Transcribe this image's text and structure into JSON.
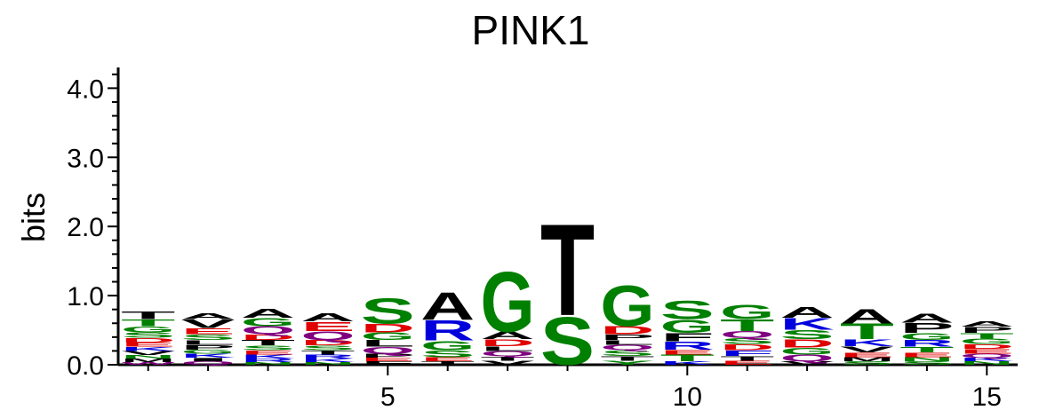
{
  "chart_data": {
    "type": "sequence-logo",
    "title": "PINK1",
    "xlabel": "",
    "ylabel": "bits",
    "ylim": [
      0,
      4.3
    ],
    "y_ticks": [
      {
        "value": 0.0,
        "label": "0.0"
      },
      {
        "value": 1.0,
        "label": "1.0"
      },
      {
        "value": 2.0,
        "label": "2.0"
      },
      {
        "value": 3.0,
        "label": "3.0"
      },
      {
        "value": 4.0,
        "label": "4.0"
      }
    ],
    "x_ticks": [
      {
        "value": 5,
        "label": "5"
      },
      {
        "value": 10,
        "label": "10"
      },
      {
        "value": 15,
        "label": "15"
      }
    ],
    "positions": [
      1,
      2,
      3,
      4,
      5,
      6,
      7,
      8,
      9,
      10,
      11,
      12,
      13,
      14,
      15
    ],
    "color_scheme": {
      "green": "#008000",
      "black": "#000000",
      "red": "#e00000",
      "blue": "#0000dd",
      "purple": "#800080"
    },
    "stacks": [
      {
        "position": 1,
        "letters": [
          {
            "aa": "W",
            "bits": 0.04,
            "color": "#800080"
          },
          {
            "aa": "M",
            "bits": 0.05,
            "color": "#000000"
          },
          {
            "aa": "N",
            "bits": 0.05,
            "color": "#008000"
          },
          {
            "aa": "V",
            "bits": 0.06,
            "color": "#000000"
          },
          {
            "aa": "K",
            "bits": 0.06,
            "color": "#0000dd"
          },
          {
            "aa": "E",
            "bits": 0.06,
            "color": "#e00000"
          },
          {
            "aa": "D",
            "bits": 0.07,
            "color": "#e00000"
          },
          {
            "aa": "S",
            "bits": 0.08,
            "color": "#008000"
          },
          {
            "aa": "G",
            "bits": 0.09,
            "color": "#008000"
          },
          {
            "aa": "T",
            "bits": 0.1,
            "color": "#008000"
          },
          {
            "aa": "T",
            "bits": 0.11,
            "color": "#000000"
          }
        ]
      },
      {
        "position": 2,
        "letters": [
          {
            "aa": "Q",
            "bits": 0.05,
            "color": "#800080"
          },
          {
            "aa": "I",
            "bits": 0.05,
            "color": "#000000"
          },
          {
            "aa": "K",
            "bits": 0.06,
            "color": "#0000dd"
          },
          {
            "aa": "G",
            "bits": 0.06,
            "color": "#008000"
          },
          {
            "aa": "P",
            "bits": 0.07,
            "color": "#000000"
          },
          {
            "aa": "L",
            "bits": 0.07,
            "color": "#000000"
          },
          {
            "aa": "S",
            "bits": 0.08,
            "color": "#008000"
          },
          {
            "aa": "E",
            "bits": 0.09,
            "color": "#e00000"
          },
          {
            "aa": "V",
            "bits": 0.13,
            "color": "#000000"
          },
          {
            "aa": "A",
            "bits": 0.09,
            "color": "#000000"
          }
        ]
      },
      {
        "position": 3,
        "letters": [
          {
            "aa": "N",
            "bits": 0.04,
            "color": "#008000"
          },
          {
            "aa": "R",
            "bits": 0.05,
            "color": "#0000dd"
          },
          {
            "aa": "K",
            "bits": 0.06,
            "color": "#0000dd"
          },
          {
            "aa": "E",
            "bits": 0.06,
            "color": "#e00000"
          },
          {
            "aa": "S",
            "bits": 0.07,
            "color": "#008000"
          },
          {
            "aa": "T",
            "bits": 0.08,
            "color": "#000000"
          },
          {
            "aa": "D",
            "bits": 0.08,
            "color": "#e00000"
          },
          {
            "aa": "Q",
            "bits": 0.12,
            "color": "#800080"
          },
          {
            "aa": "G",
            "bits": 0.12,
            "color": "#008000"
          },
          {
            "aa": "A",
            "bits": 0.14,
            "color": "#000000"
          }
        ]
      },
      {
        "position": 4,
        "letters": [
          {
            "aa": "N",
            "bits": 0.04,
            "color": "#008000"
          },
          {
            "aa": "K",
            "bits": 0.05,
            "color": "#0000dd"
          },
          {
            "aa": "R",
            "bits": 0.06,
            "color": "#0000dd"
          },
          {
            "aa": "T",
            "bits": 0.06,
            "color": "#000000"
          },
          {
            "aa": "S",
            "bits": 0.07,
            "color": "#008000"
          },
          {
            "aa": "D",
            "bits": 0.08,
            "color": "#e00000"
          },
          {
            "aa": "Q",
            "bits": 0.13,
            "color": "#800080"
          },
          {
            "aa": "E",
            "bits": 0.14,
            "color": "#e00000"
          },
          {
            "aa": "A",
            "bits": 0.12,
            "color": "#000000"
          }
        ]
      },
      {
        "position": 5,
        "letters": [
          {
            "aa": "F",
            "bits": 0.05,
            "color": "#000000"
          },
          {
            "aa": "E",
            "bits": 0.05,
            "color": "#e00000"
          },
          {
            "aa": "P",
            "bits": 0.06,
            "color": "#000000"
          },
          {
            "aa": "Q",
            "bits": 0.1,
            "color": "#800080"
          },
          {
            "aa": "L",
            "bits": 0.1,
            "color": "#000000"
          },
          {
            "aa": "G",
            "bits": 0.11,
            "color": "#008000"
          },
          {
            "aa": "D",
            "bits": 0.13,
            "color": "#e00000"
          },
          {
            "aa": "S",
            "bits": 0.38,
            "color": "#008000"
          }
        ]
      },
      {
        "position": 6,
        "letters": [
          {
            "aa": "T",
            "bits": 0.05,
            "color": "#000000"
          },
          {
            "aa": "E",
            "bits": 0.06,
            "color": "#e00000"
          },
          {
            "aa": "S",
            "bits": 0.1,
            "color": "#008000"
          },
          {
            "aa": "G",
            "bits": 0.14,
            "color": "#008000"
          },
          {
            "aa": "R",
            "bits": 0.3,
            "color": "#0000dd"
          },
          {
            "aa": "A",
            "bits": 0.42,
            "color": "#000000"
          }
        ]
      },
      {
        "position": 7,
        "letters": [
          {
            "aa": "V",
            "bits": 0.06,
            "color": "#000000"
          },
          {
            "aa": "T",
            "bits": 0.06,
            "color": "#000000"
          },
          {
            "aa": "Q",
            "bits": 0.08,
            "color": "#800080"
          },
          {
            "aa": "L",
            "bits": 0.07,
            "color": "#000000"
          },
          {
            "aa": "D",
            "bits": 0.1,
            "color": "#e00000"
          },
          {
            "aa": "A",
            "bits": 0.11,
            "color": "#000000"
          },
          {
            "aa": "G",
            "bits": 0.9,
            "color": "#008000"
          }
        ]
      },
      {
        "position": 8,
        "letters": [
          {
            "aa": "S",
            "bits": 0.72,
            "color": "#008000"
          },
          {
            "aa": "T",
            "bits": 1.38,
            "color": "#000000"
          }
        ]
      },
      {
        "position": 9,
        "letters": [
          {
            "aa": "Y",
            "bits": 0.06,
            "color": "#008000"
          },
          {
            "aa": "T",
            "bits": 0.07,
            "color": "#000000"
          },
          {
            "aa": "S",
            "bits": 0.08,
            "color": "#008000"
          },
          {
            "aa": "Q",
            "bits": 0.08,
            "color": "#800080"
          },
          {
            "aa": "L",
            "bits": 0.07,
            "color": "#000000"
          },
          {
            "aa": "P",
            "bits": 0.08,
            "color": "#000000"
          },
          {
            "aa": "D",
            "bits": 0.12,
            "color": "#e00000"
          },
          {
            "aa": "G",
            "bits": 0.62,
            "color": "#008000"
          }
        ]
      },
      {
        "position": 10,
        "letters": [
          {
            "aa": "K",
            "bits": 0.05,
            "color": "#0000dd"
          },
          {
            "aa": "T",
            "bits": 0.1,
            "color": "#008000"
          },
          {
            "aa": "E",
            "bits": 0.07,
            "color": "#e00000"
          },
          {
            "aa": "R",
            "bits": 0.12,
            "color": "#0000dd"
          },
          {
            "aa": "F",
            "bits": 0.12,
            "color": "#000000"
          },
          {
            "aa": "G",
            "bits": 0.2,
            "color": "#008000"
          },
          {
            "aa": "S",
            "bits": 0.28,
            "color": "#008000"
          }
        ]
      },
      {
        "position": 11,
        "letters": [
          {
            "aa": "E",
            "bits": 0.06,
            "color": "#e00000"
          },
          {
            "aa": "T",
            "bits": 0.07,
            "color": "#000000"
          },
          {
            "aa": "F",
            "bits": 0.08,
            "color": "#0000dd"
          },
          {
            "aa": "D",
            "bits": 0.09,
            "color": "#e00000"
          },
          {
            "aa": "S",
            "bits": 0.09,
            "color": "#008000"
          },
          {
            "aa": "Q",
            "bits": 0.1,
            "color": "#800080"
          },
          {
            "aa": "T",
            "bits": 0.17,
            "color": "#008000"
          },
          {
            "aa": "G",
            "bits": 0.22,
            "color": "#008000"
          }
        ]
      },
      {
        "position": 12,
        "letters": [
          {
            "aa": "V",
            "bits": 0.05,
            "color": "#000000"
          },
          {
            "aa": "Q",
            "bits": 0.1,
            "color": "#800080"
          },
          {
            "aa": "G",
            "bits": 0.1,
            "color": "#008000"
          },
          {
            "aa": "D",
            "bits": 0.12,
            "color": "#e00000"
          },
          {
            "aa": "S",
            "bits": 0.14,
            "color": "#008000"
          },
          {
            "aa": "K",
            "bits": 0.17,
            "color": "#0000dd"
          },
          {
            "aa": "A",
            "bits": 0.16,
            "color": "#000000"
          }
        ]
      },
      {
        "position": 13,
        "letters": [
          {
            "aa": "S",
            "bits": 0.05,
            "color": "#008000"
          },
          {
            "aa": "M",
            "bits": 0.06,
            "color": "#000000"
          },
          {
            "aa": "E",
            "bits": 0.07,
            "color": "#e00000"
          },
          {
            "aa": "V",
            "bits": 0.09,
            "color": "#000000"
          },
          {
            "aa": "K",
            "bits": 0.1,
            "color": "#0000dd"
          },
          {
            "aa": "T",
            "bits": 0.23,
            "color": "#008000"
          },
          {
            "aa": "A",
            "bits": 0.22,
            "color": "#000000"
          }
        ]
      },
      {
        "position": 14,
        "letters": [
          {
            "aa": "S",
            "bits": 0.05,
            "color": "#008000"
          },
          {
            "aa": "N",
            "bits": 0.06,
            "color": "#008000"
          },
          {
            "aa": "E",
            "bits": 0.07,
            "color": "#e00000"
          },
          {
            "aa": "T",
            "bits": 0.08,
            "color": "#008000"
          },
          {
            "aa": "R",
            "bits": 0.1,
            "color": "#0000dd"
          },
          {
            "aa": "G",
            "bits": 0.1,
            "color": "#008000"
          },
          {
            "aa": "P",
            "bits": 0.15,
            "color": "#000000"
          },
          {
            "aa": "A",
            "bits": 0.14,
            "color": "#000000"
          }
        ]
      },
      {
        "position": 15,
        "letters": [
          {
            "aa": "N",
            "bits": 0.05,
            "color": "#008000"
          },
          {
            "aa": "K",
            "bits": 0.05,
            "color": "#0000dd"
          },
          {
            "aa": "Q",
            "bits": 0.06,
            "color": "#800080"
          },
          {
            "aa": "E",
            "bits": 0.07,
            "color": "#e00000"
          },
          {
            "aa": "D",
            "bits": 0.07,
            "color": "#e00000"
          },
          {
            "aa": "G",
            "bits": 0.08,
            "color": "#008000"
          },
          {
            "aa": "T",
            "bits": 0.08,
            "color": "#008000"
          },
          {
            "aa": "P",
            "bits": 0.09,
            "color": "#000000"
          },
          {
            "aa": "A",
            "bits": 0.08,
            "color": "#000000"
          }
        ]
      }
    ]
  }
}
